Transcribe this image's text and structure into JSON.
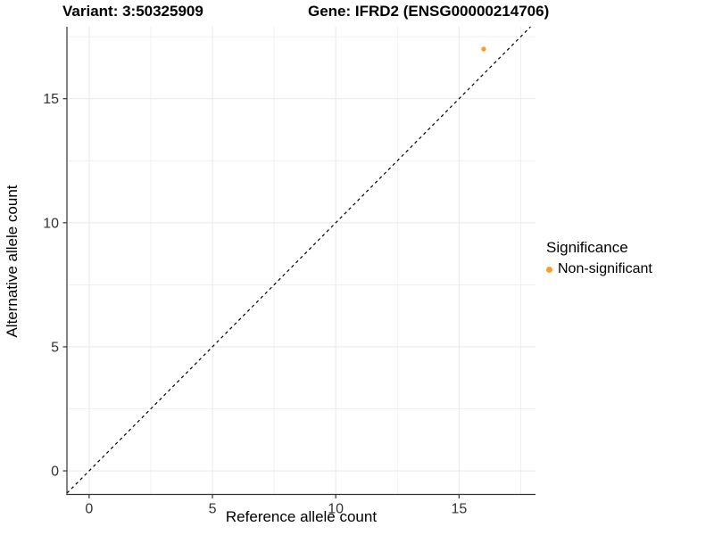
{
  "chart_data": {
    "type": "scatter",
    "titles": {
      "variant": "Variant: 3:50325909",
      "gene": "Gene: IFRD2 (ENSG00000214706)"
    },
    "xlabel": "Reference allele count",
    "ylabel": "Alternative allele count",
    "xlim": [
      -0.9,
      18.1
    ],
    "ylim": [
      -0.95,
      17.9
    ],
    "xticks": [
      0,
      5,
      10,
      15
    ],
    "yticks": [
      0,
      5,
      10,
      15
    ],
    "minor_ticks_x": [
      2.5,
      7.5,
      12.5,
      17.5
    ],
    "minor_ticks_y": [
      2.5,
      7.5,
      12.5,
      17.5
    ],
    "grid": true,
    "points": [
      {
        "x": 16,
        "y": 17,
        "series": "Non-significant"
      }
    ],
    "reference_line": {
      "slope": 1,
      "intercept": 0,
      "style": "dashed",
      "color": "#000000"
    },
    "series_colors": {
      "Non-significant": "#FB9E26"
    },
    "legend": {
      "title": "Significance",
      "position": "right",
      "entries": [
        {
          "label": "Non-significant",
          "color": "#FB9E26"
        }
      ]
    },
    "colors": {
      "grid": "#EBEBEB",
      "axis_line": "#333333",
      "tick_label": "#333333",
      "title": "#000000",
      "background": "#FFFFFF"
    }
  }
}
